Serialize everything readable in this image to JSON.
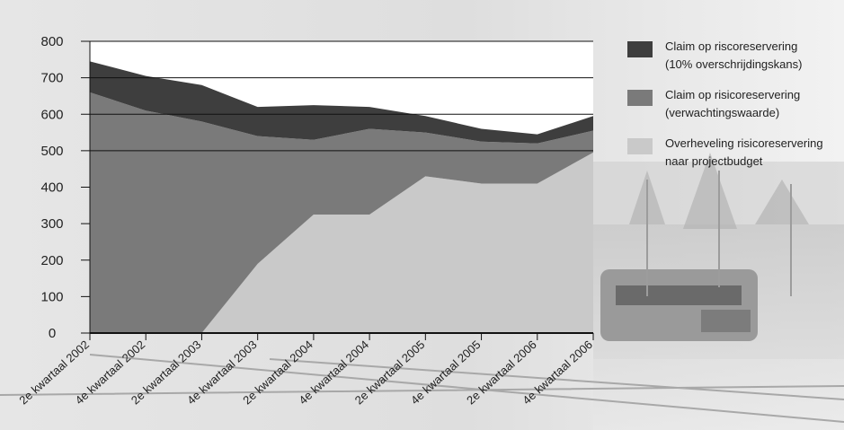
{
  "chart_data": {
    "type": "area",
    "stacked": true,
    "categories": [
      "2e kwartaal 2002",
      "4e kwartaal 2002",
      "2e kwartaal 2003",
      "4e kwartaal 2003",
      "2e kwartaal 2004",
      "4e kwartaal 2004",
      "2e kwartaal 2005",
      "4e kwartaal 2005",
      "2e kwartaal 2006",
      "4e kwartaal 2006"
    ],
    "series": [
      {
        "name_lines": [
          "Overheveling risicoreservering",
          "naar projectbudget"
        ],
        "color": "#c9c9c9",
        "values": [
          0,
          0,
          0,
          190,
          325,
          325,
          430,
          410,
          410,
          495
        ]
      },
      {
        "name_lines": [
          "Claim op risicoreservering",
          "(verwachtingswaarde)"
        ],
        "color": "#7a7a7a",
        "values": [
          660,
          610,
          580,
          350,
          205,
          235,
          120,
          115,
          110,
          60
        ]
      },
      {
        "name_lines": [
          "Claim op riscoreservering",
          "(10% overschrijdingskans)"
        ],
        "color": "#3e3e3e",
        "values": [
          85,
          95,
          100,
          80,
          95,
          60,
          45,
          35,
          25,
          40
        ]
      }
    ],
    "ylim": [
      0,
      800
    ],
    "yticks": [
      "0",
      "100",
      "200",
      "300",
      "400",
      "500",
      "600",
      "700",
      "800"
    ],
    "gridlines": [
      500,
      600,
      700,
      800
    ],
    "legend_position": "right"
  },
  "legend": [
    {
      "color": "#3e3e3e",
      "line1": "Claim op riscoreservering",
      "line2": "(10% overschrijdingskans)"
    },
    {
      "color": "#7a7a7a",
      "line1": "Claim op risicoreservering",
      "line2": "(verwachtingswaarde)"
    },
    {
      "color": "#c9c9c9",
      "line1": "Overheveling risicoreservering",
      "line2": "naar projectbudget"
    }
  ]
}
